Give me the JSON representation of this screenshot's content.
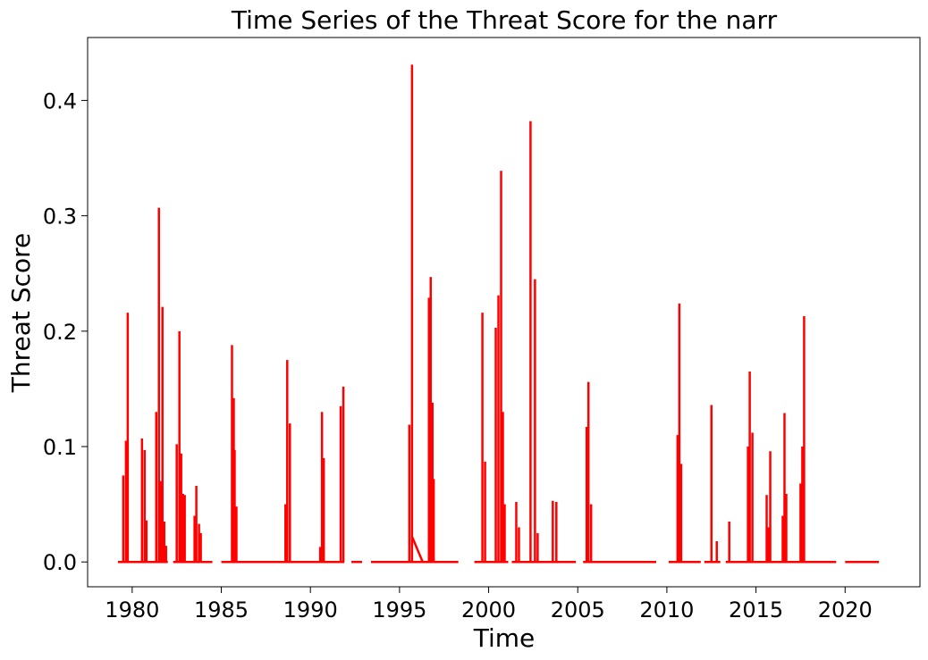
{
  "chart_data": {
    "type": "line",
    "title": "Time Series of the Threat Score for the narr",
    "xlabel": "Time",
    "ylabel": "Threat Score",
    "xlim": [
      1977.5,
      2024.2
    ],
    "ylim": [
      -0.0215,
      0.4545
    ],
    "xticks": [
      1980,
      1985,
      1990,
      1995,
      2000,
      2005,
      2010,
      2015,
      2020
    ],
    "yticks": [
      0.0,
      0.1,
      0.2,
      0.3,
      0.4
    ],
    "ytick_labels": [
      "0.0",
      "0.1",
      "0.2",
      "0.3",
      "0.4"
    ],
    "grid": false,
    "legend": "none",
    "color": "#ff0000",
    "zero_segments": [
      [
        1979.2,
        1982.0
      ],
      [
        1982.3,
        1984.5
      ],
      [
        1985.0,
        1991.9
      ],
      [
        1992.3,
        1992.9
      ],
      [
        1993.4,
        1998.3
      ],
      [
        1999.2,
        2001.1
      ],
      [
        2001.3,
        2004.9
      ],
      [
        2005.3,
        2009.4
      ],
      [
        2010.1,
        2011.9
      ],
      [
        2012.1,
        2013.0
      ],
      [
        2013.3,
        2019.5
      ],
      [
        2020.0,
        2021.9
      ]
    ],
    "spikes": [
      {
        "x": 1979.5,
        "y": 0.075
      },
      {
        "x": 1979.65,
        "y": 0.105
      },
      {
        "x": 1979.75,
        "y": 0.216
      },
      {
        "x": 1980.55,
        "y": 0.107
      },
      {
        "x": 1980.7,
        "y": 0.097
      },
      {
        "x": 1980.8,
        "y": 0.036
      },
      {
        "x": 1981.35,
        "y": 0.13
      },
      {
        "x": 1981.5,
        "y": 0.307
      },
      {
        "x": 1981.6,
        "y": 0.07
      },
      {
        "x": 1981.7,
        "y": 0.221
      },
      {
        "x": 1981.8,
        "y": 0.035
      },
      {
        "x": 1981.9,
        "y": 0.014
      },
      {
        "x": 1982.5,
        "y": 0.102
      },
      {
        "x": 1982.65,
        "y": 0.2
      },
      {
        "x": 1982.75,
        "y": 0.094
      },
      {
        "x": 1982.85,
        "y": 0.059
      },
      {
        "x": 1982.95,
        "y": 0.058
      },
      {
        "x": 1983.5,
        "y": 0.04
      },
      {
        "x": 1983.6,
        "y": 0.066
      },
      {
        "x": 1983.75,
        "y": 0.033
      },
      {
        "x": 1983.85,
        "y": 0.025
      },
      {
        "x": 1985.6,
        "y": 0.188
      },
      {
        "x": 1985.7,
        "y": 0.142
      },
      {
        "x": 1985.75,
        "y": 0.097
      },
      {
        "x": 1985.85,
        "y": 0.048
      },
      {
        "x": 1988.6,
        "y": 0.05
      },
      {
        "x": 1988.7,
        "y": 0.175
      },
      {
        "x": 1988.85,
        "y": 0.12
      },
      {
        "x": 1990.55,
        "y": 0.013
      },
      {
        "x": 1990.65,
        "y": 0.13
      },
      {
        "x": 1990.75,
        "y": 0.09
      },
      {
        "x": 1991.7,
        "y": 0.135
      },
      {
        "x": 1991.85,
        "y": 0.152
      },
      {
        "x": 1995.55,
        "y": 0.119
      },
      {
        "x": 1995.7,
        "y": 0.431
      },
      {
        "x": 1996.65,
        "y": 0.229
      },
      {
        "x": 1996.75,
        "y": 0.247
      },
      {
        "x": 1996.85,
        "y": 0.138
      },
      {
        "x": 1996.92,
        "y": 0.072
      },
      {
        "x": 1999.65,
        "y": 0.216
      },
      {
        "x": 1999.8,
        "y": 0.087
      },
      {
        "x": 2000.4,
        "y": 0.203
      },
      {
        "x": 2000.55,
        "y": 0.231
      },
      {
        "x": 2000.7,
        "y": 0.339
      },
      {
        "x": 2000.8,
        "y": 0.13
      },
      {
        "x": 2000.9,
        "y": 0.05
      },
      {
        "x": 2001.55,
        "y": 0.052
      },
      {
        "x": 2001.7,
        "y": 0.03
      },
      {
        "x": 2002.35,
        "y": 0.382
      },
      {
        "x": 2002.6,
        "y": 0.245
      },
      {
        "x": 2002.75,
        "y": 0.025
      },
      {
        "x": 2003.6,
        "y": 0.053
      },
      {
        "x": 2003.8,
        "y": 0.052
      },
      {
        "x": 2005.5,
        "y": 0.117
      },
      {
        "x": 2005.6,
        "y": 0.156
      },
      {
        "x": 2005.75,
        "y": 0.05
      },
      {
        "x": 2010.6,
        "y": 0.11
      },
      {
        "x": 2010.7,
        "y": 0.224
      },
      {
        "x": 2010.8,
        "y": 0.085
      },
      {
        "x": 2012.5,
        "y": 0.136
      },
      {
        "x": 2012.8,
        "y": 0.018
      },
      {
        "x": 2013.5,
        "y": 0.035
      },
      {
        "x": 2014.55,
        "y": 0.1
      },
      {
        "x": 2014.65,
        "y": 0.165
      },
      {
        "x": 2014.8,
        "y": 0.112
      },
      {
        "x": 2015.6,
        "y": 0.058
      },
      {
        "x": 2015.7,
        "y": 0.03
      },
      {
        "x": 2015.8,
        "y": 0.096
      },
      {
        "x": 2016.5,
        "y": 0.04
      },
      {
        "x": 2016.6,
        "y": 0.129
      },
      {
        "x": 2016.7,
        "y": 0.059
      },
      {
        "x": 2017.5,
        "y": 0.068
      },
      {
        "x": 2017.6,
        "y": 0.1
      },
      {
        "x": 2017.7,
        "y": 0.213
      }
    ],
    "diagonals": [
      {
        "x": [
          1995.7,
          1996.3
        ],
        "y": [
          0.022,
          0.0
        ]
      }
    ]
  }
}
